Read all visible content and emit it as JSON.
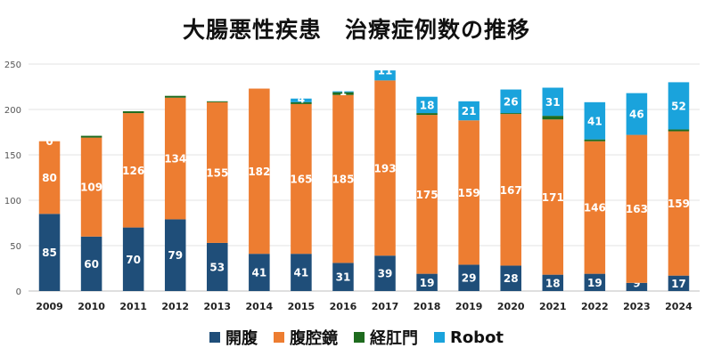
{
  "chart_data": {
    "type": "bar",
    "stacked": true,
    "title": "大腸悪性疾患　治療症例数の推移",
    "ylim": [
      0,
      250
    ],
    "yticks": [
      0,
      50,
      100,
      150,
      200,
      250
    ],
    "grid": true,
    "legend_position": "bottom",
    "categories": [
      "2009",
      "2010",
      "2011",
      "2012",
      "2013",
      "2014",
      "2015",
      "2016",
      "2017",
      "2018",
      "2019",
      "2020",
      "2021",
      "2022",
      "2023",
      "2024"
    ],
    "series": [
      {
        "name": "開腹",
        "color": "#1f4e79",
        "values": [
          85,
          60,
          70,
          79,
          53,
          41,
          41,
          31,
          39,
          19,
          29,
          28,
          18,
          19,
          9,
          17
        ],
        "labels": [
          "85",
          "60",
          "70",
          "79",
          "53",
          "41",
          "41",
          "31",
          "39",
          "19",
          "29",
          "28",
          "18",
          "19",
          "9",
          "17"
        ]
      },
      {
        "name": "腹腔鏡",
        "color": "#ed7d31",
        "values": [
          80,
          109,
          126,
          134,
          155,
          182,
          165,
          185,
          193,
          175,
          159,
          167,
          171,
          146,
          163,
          159
        ],
        "labels": [
          "80",
          "109",
          "126",
          "134",
          "155",
          "182",
          "165",
          "185",
          "193",
          "175",
          "159",
          "167",
          "171",
          "146",
          "163",
          "159"
        ]
      },
      {
        "name": "経肛門",
        "color": "#1e6b1e",
        "values": [
          0,
          2,
          2,
          2,
          1,
          0,
          2,
          3,
          0,
          2,
          0,
          1,
          4,
          2,
          0,
          2
        ],
        "labels": [
          "",
          "",
          "",
          "",
          "",
          "",
          "",
          "",
          "",
          "",
          "",
          "",
          "",
          "",
          "",
          ""
        ]
      },
      {
        "name": "Robot",
        "color": "#1aa3dc",
        "values": [
          0,
          0,
          0,
          0,
          0,
          0,
          4,
          1,
          11,
          18,
          21,
          26,
          31,
          41,
          46,
          52
        ],
        "labels": [
          "0",
          "",
          "",
          "",
          "",
          "",
          "4",
          "1",
          "11",
          "18",
          "21",
          "26",
          "31",
          "41",
          "46",
          "52"
        ]
      }
    ]
  }
}
